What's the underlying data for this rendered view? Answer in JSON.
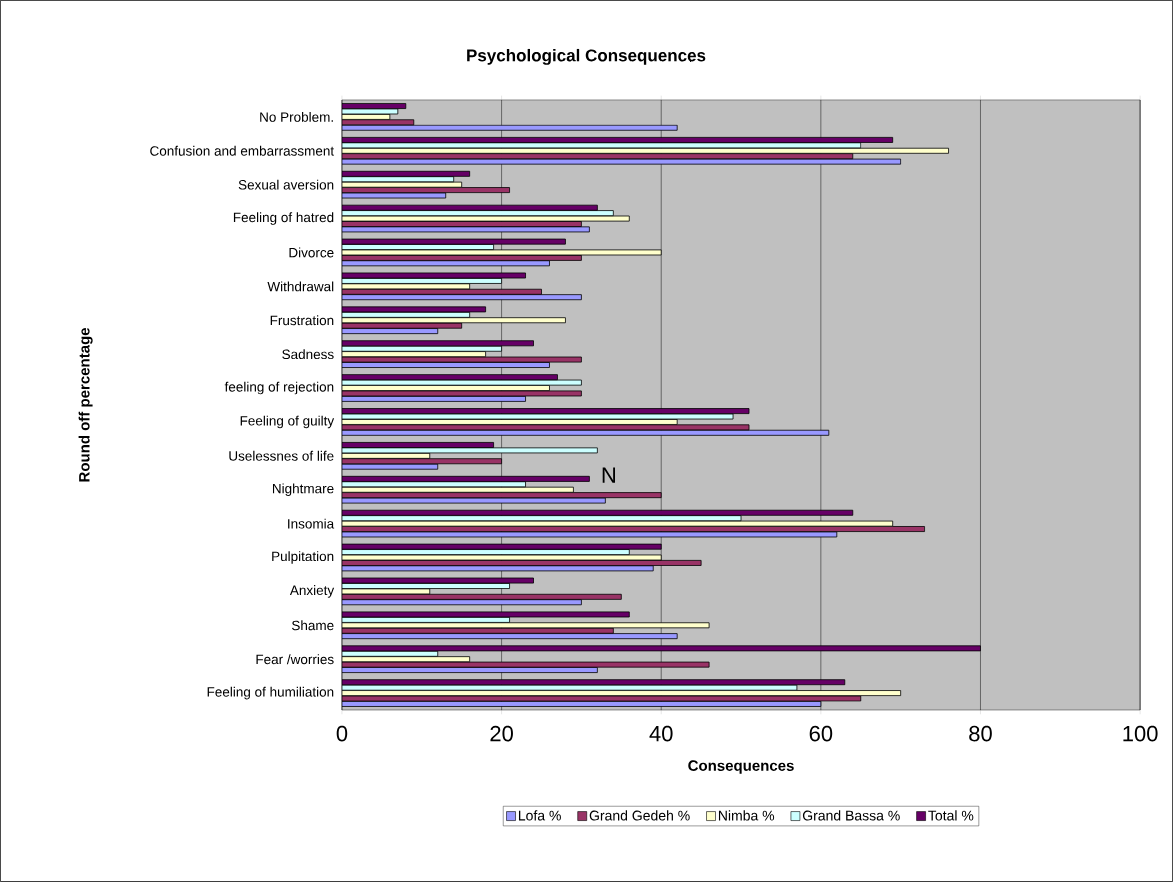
{
  "chart_data": {
    "type": "bar",
    "orientation": "horizontal",
    "title": "Psychological Consequences",
    "xlabel": "Consequences",
    "ylabel": "Round off percentage",
    "categories": [
      "No Problem.",
      "Confusion and embarrassment",
      "Sexual aversion",
      "Feeling of hatred",
      "Divorce",
      "Withdrawal",
      "Frustration",
      "Sadness",
      "feeling of rejection",
      "Feeling of guilty",
      "Uselessnes of life",
      "Nightmare",
      "Insomia",
      "Pulpitation",
      "Anxiety",
      "Shame",
      "Fear /worries",
      "Feeling of humiliation"
    ],
    "series": [
      {
        "name": "Lofa %",
        "color": "#9999ff",
        "values": [
          42,
          70,
          13,
          31,
          26,
          30,
          12,
          26,
          23,
          61,
          12,
          33,
          62,
          39,
          30,
          42,
          32,
          60
        ]
      },
      {
        "name": "Grand Gedeh %",
        "color": "#993366",
        "values": [
          9,
          64,
          21,
          30,
          30,
          25,
          15,
          30,
          30,
          51,
          20,
          40,
          73,
          45,
          35,
          34,
          46,
          65
        ]
      },
      {
        "name": "Nimba %",
        "color": "#ffffcc",
        "values": [
          6,
          76,
          15,
          36,
          40,
          16,
          28,
          18,
          26,
          42,
          11,
          29,
          69,
          40,
          11,
          46,
          16,
          70
        ]
      },
      {
        "name": "Grand Bassa %",
        "color": "#ccffff",
        "values": [
          7,
          65,
          14,
          34,
          19,
          20,
          16,
          20,
          30,
          49,
          32,
          23,
          50,
          36,
          21,
          21,
          12,
          57
        ]
      },
      {
        "name": "Total %",
        "color": "#660066",
        "values": [
          8,
          69,
          16,
          32,
          28,
          23,
          18,
          24,
          27,
          51,
          19,
          31,
          64,
          40,
          24,
          36,
          80,
          63
        ]
      }
    ],
    "xlim": [
      0,
      100
    ],
    "xticks": [
      0,
      20,
      40,
      60,
      80,
      100
    ],
    "grid": "x",
    "legend": "bottom",
    "annotations": [
      "N"
    ]
  }
}
